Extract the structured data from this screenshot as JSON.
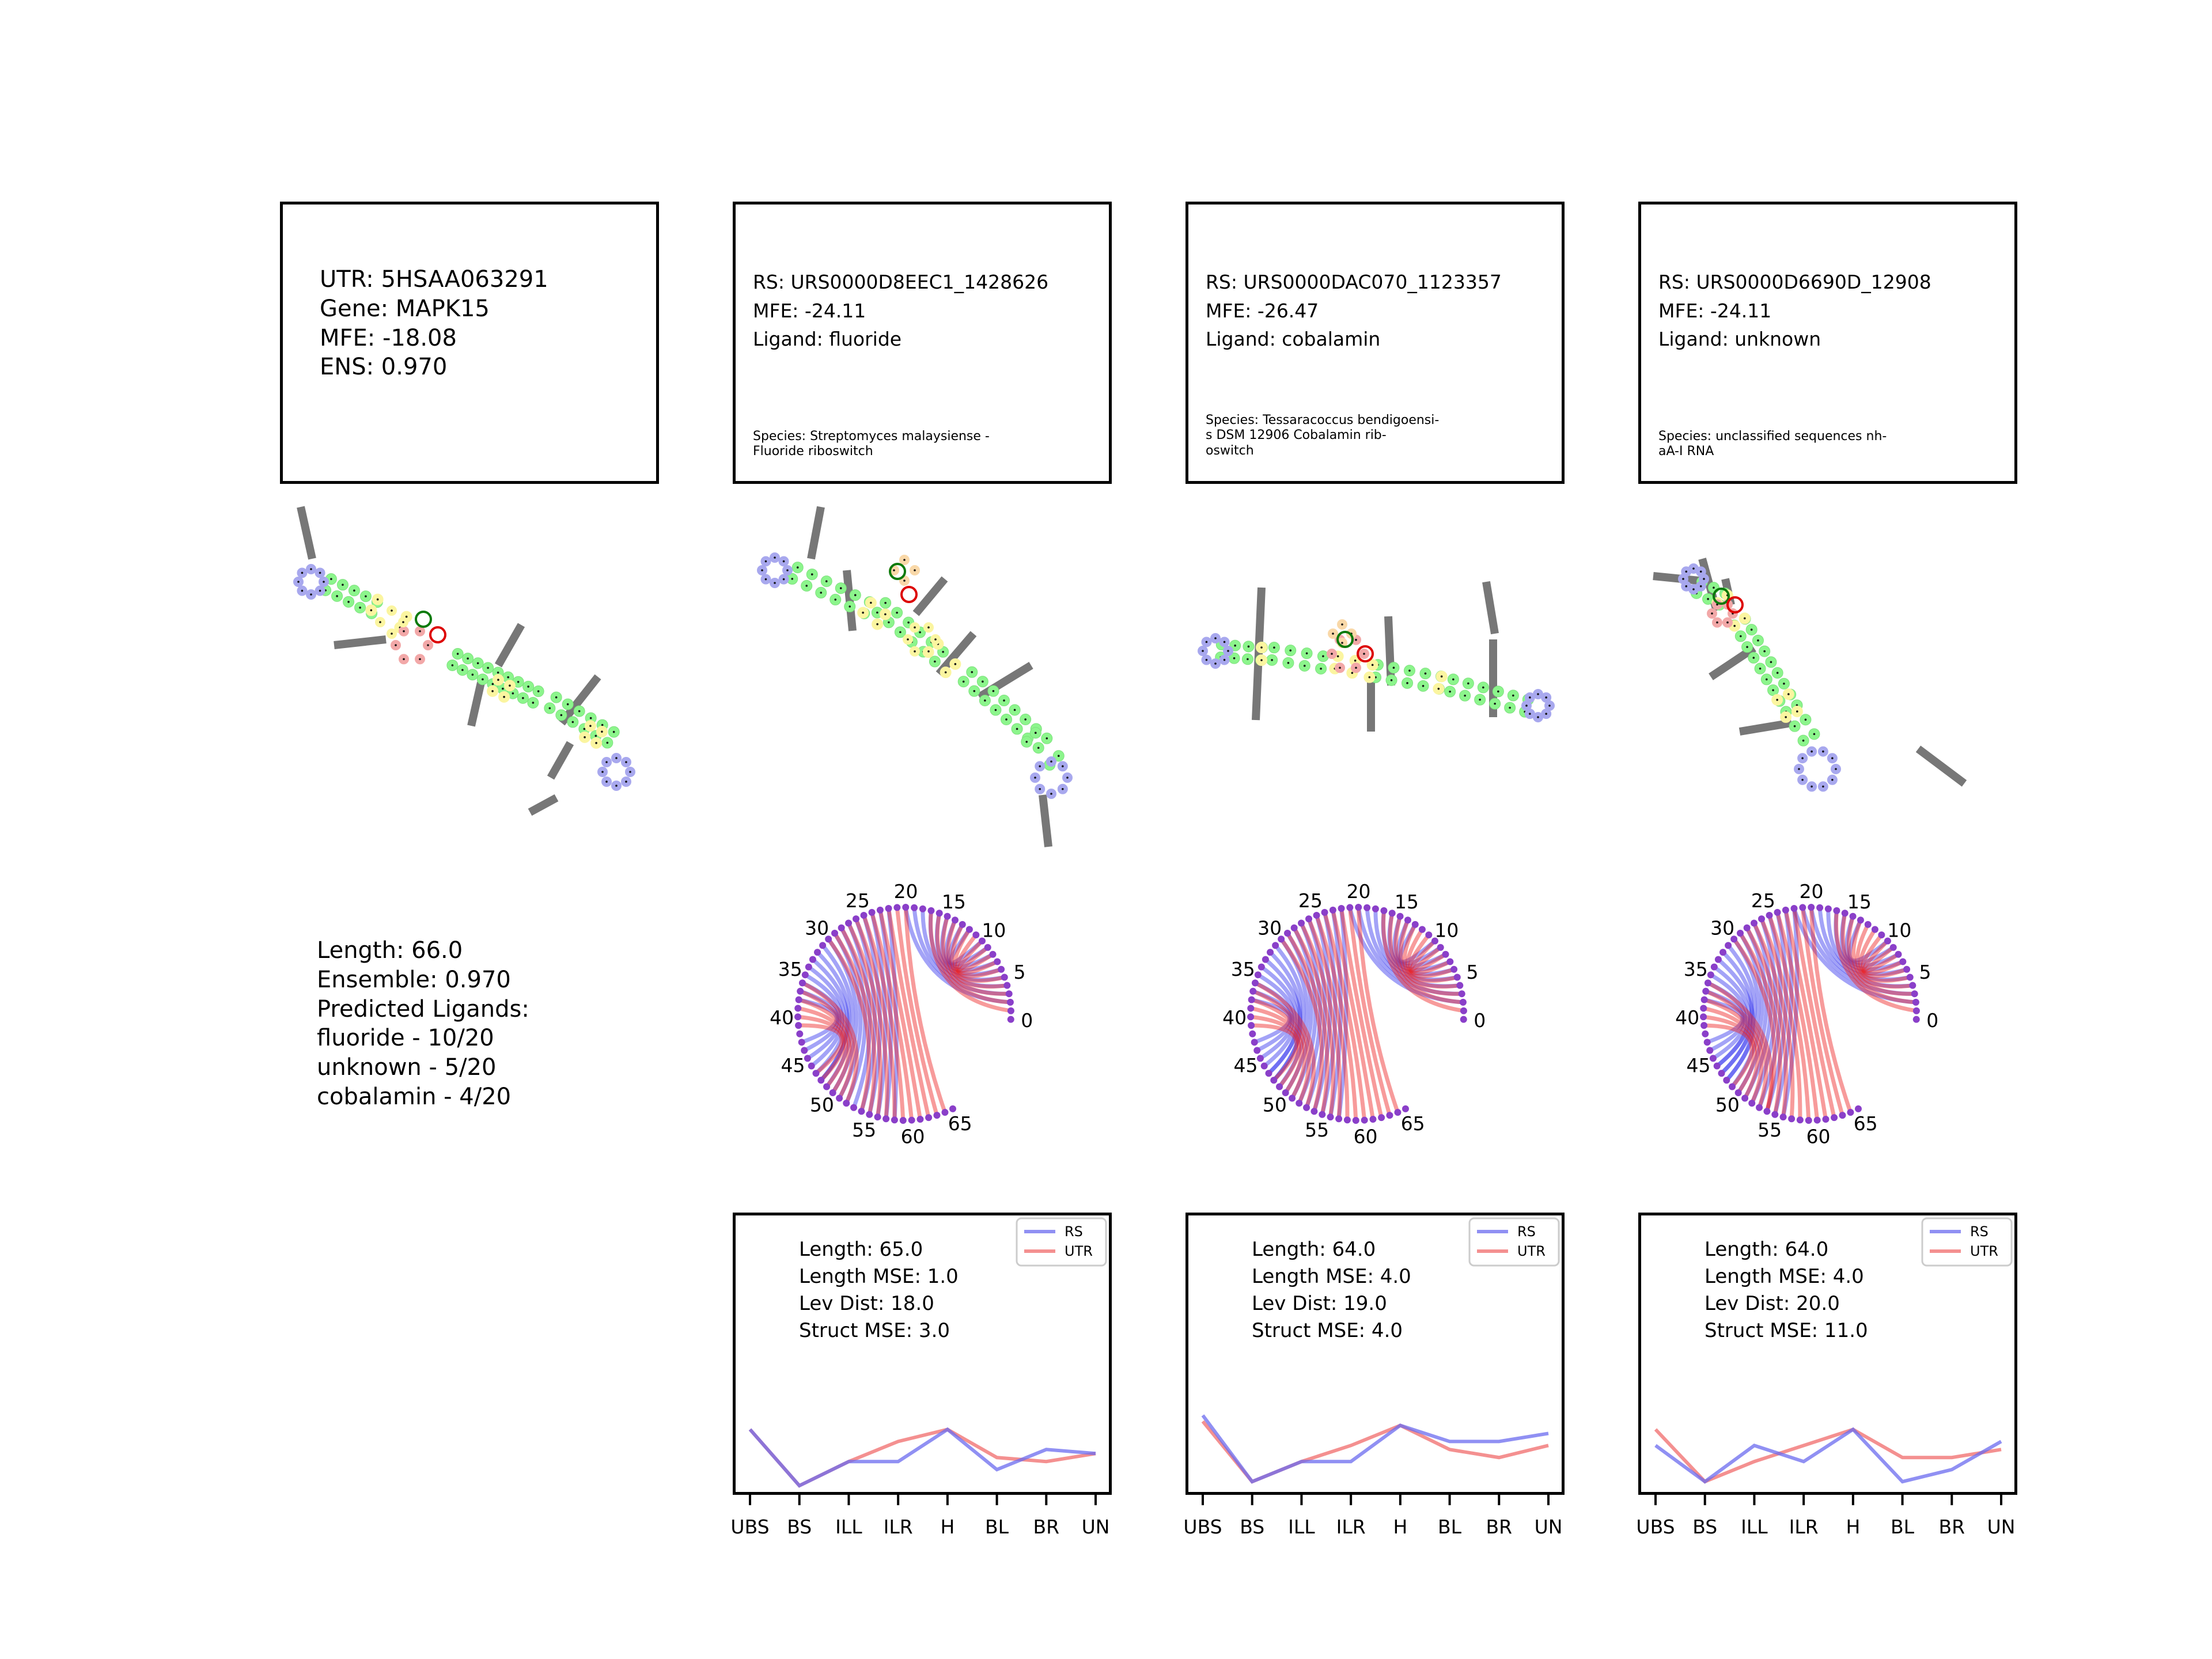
{
  "utr": {
    "title_lines": [
      "UTR: 5HSAA063291",
      "Gene: MAPK15",
      "MFE: -18.08",
      "ENS: 0.970"
    ],
    "summary_lines": [
      "Length: 66.0",
      "Ensemble: 0.970",
      "Predicted Ligands:",
      "fluoride - 10/20",
      "unknown - 5/20",
      "cobalamin - 4/20"
    ]
  },
  "switches": [
    {
      "info_lines": [
        "RS: URS0000D8EEC1_1428626",
        "MFE: -24.11",
        "Ligand: fluoride"
      ],
      "species_lines": [
        "Species: Streptomyces malaysiense -",
        "Fluoride riboswitch"
      ],
      "stats_lines": [
        "Length: 65.0",
        "Length MSE: 1.0",
        "Lev Dist: 18.0",
        "Struct MSE: 3.0"
      ]
    },
    {
      "info_lines": [
        "RS: URS0000DAC070_1123357",
        "MFE: -26.47",
        "Ligand: cobalamin"
      ],
      "species_lines": [
        "Species: Tessaracoccus bendigoensi-",
        "s DSM 12906 Cobalamin rib-",
        "oswitch"
      ],
      "stats_lines": [
        "Length: 64.0",
        "Length MSE: 4.0",
        "Lev Dist: 19.0",
        "Struct MSE: 4.0"
      ]
    },
    {
      "info_lines": [
        "RS: URS0000D6690D_12908",
        "MFE: -24.11",
        "Ligand: unknown"
      ],
      "species_lines": [
        "Species: unclassified sequences nh-",
        "aA-I RNA"
      ],
      "stats_lines": [
        "Length: 64.0",
        "Length MSE: 4.0",
        "Lev Dist: 20.0",
        "Struct MSE: 11.0"
      ]
    }
  ],
  "arc_tick_labels": [
    "0",
    "5",
    "10",
    "15",
    "20",
    "25",
    "30",
    "35",
    "40",
    "45",
    "50",
    "55",
    "60",
    "65"
  ],
  "chart_data": [
    {
      "type": "line",
      "categories": [
        "UBS",
        "BS",
        "ILL",
        "ILR",
        "H",
        "BL",
        "BR",
        "UN"
      ],
      "series": [
        {
          "name": "RS",
          "color": "#6b6bef",
          "values": [
            3.2,
            0.4,
            1.6,
            1.6,
            3.2,
            1.2,
            2.2,
            2.0
          ]
        },
        {
          "name": "UTR",
          "color": "#f06b6b",
          "values": [
            3.2,
            0.4,
            1.6,
            2.6,
            3.2,
            1.8,
            1.6,
            2.0
          ]
        }
      ],
      "ylim": [
        0,
        14
      ],
      "legend": "top-right"
    },
    {
      "type": "line",
      "categories": [
        "UBS",
        "BS",
        "ILL",
        "ILR",
        "H",
        "BL",
        "BR",
        "UN"
      ],
      "series": [
        {
          "name": "RS",
          "color": "#6b6bef",
          "values": [
            3.9,
            0.6,
            1.6,
            1.6,
            3.4,
            2.6,
            2.6,
            3.0
          ]
        },
        {
          "name": "UTR",
          "color": "#f06b6b",
          "values": [
            3.6,
            0.6,
            1.6,
            2.4,
            3.4,
            2.2,
            1.8,
            2.4
          ]
        }
      ],
      "ylim": [
        0,
        14
      ],
      "legend": "top-right"
    },
    {
      "type": "line",
      "categories": [
        "UBS",
        "BS",
        "ILL",
        "ILR",
        "H",
        "BL",
        "BR",
        "UN"
      ],
      "series": [
        {
          "name": "RS",
          "color": "#6b6bef",
          "values": [
            2.4,
            0.6,
            2.4,
            1.6,
            3.2,
            0.6,
            1.2,
            2.6
          ]
        },
        {
          "name": "UTR",
          "color": "#f06b6b",
          "values": [
            3.2,
            0.6,
            1.6,
            2.4,
            3.2,
            1.8,
            1.8,
            2.2
          ]
        }
      ],
      "ylim": [
        0,
        14
      ],
      "legend": "top-right"
    }
  ]
}
